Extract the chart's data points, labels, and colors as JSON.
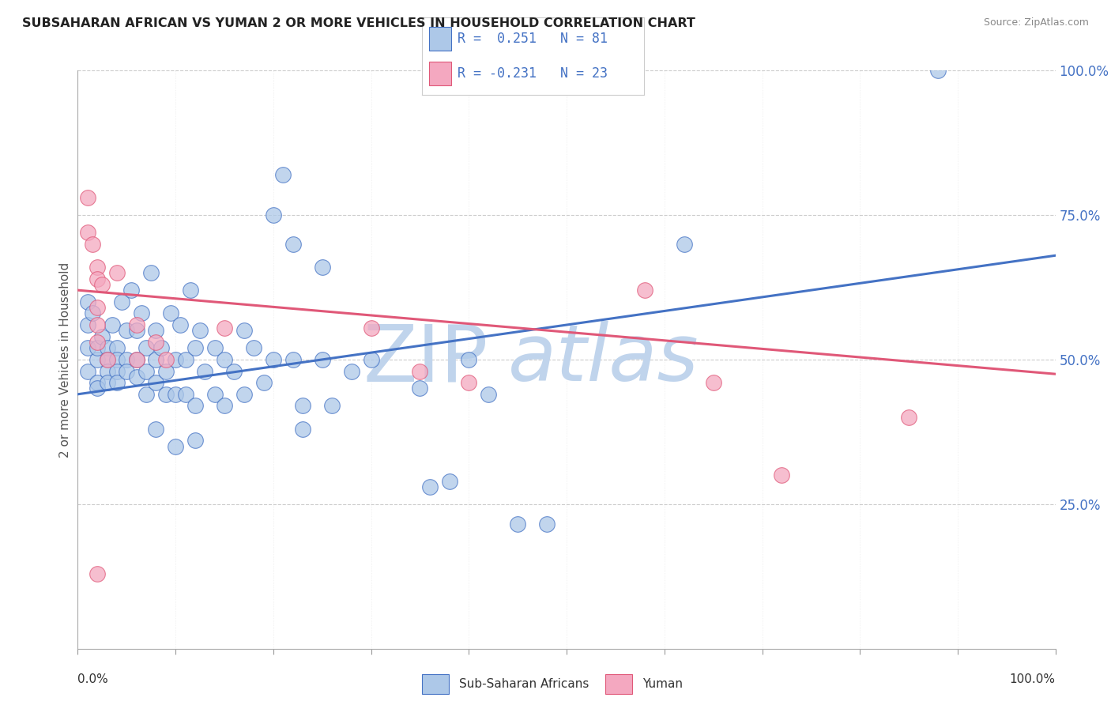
{
  "title": "SUBSAHARAN AFRICAN VS YUMAN 2 OR MORE VEHICLES IN HOUSEHOLD CORRELATION CHART",
  "source": "Source: ZipAtlas.com",
  "ylabel": "2 or more Vehicles in Household",
  "legend_blue_label": "Sub-Saharan Africans",
  "legend_pink_label": "Yuman",
  "blue_color": "#adc8e8",
  "pink_color": "#f4a8c0",
  "blue_line_color": "#4472c4",
  "pink_line_color": "#e05878",
  "background_color": "#ffffff",
  "grid_color": "#cccccc",
  "watermark_color": "#c0d4ec",
  "blue_points": [
    [
      0.01,
      0.48
    ],
    [
      0.01,
      0.52
    ],
    [
      0.01,
      0.56
    ],
    [
      0.01,
      0.6
    ],
    [
      0.015,
      0.58
    ],
    [
      0.02,
      0.5
    ],
    [
      0.02,
      0.52
    ],
    [
      0.02,
      0.46
    ],
    [
      0.02,
      0.45
    ],
    [
      0.025,
      0.54
    ],
    [
      0.03,
      0.52
    ],
    [
      0.03,
      0.5
    ],
    [
      0.03,
      0.48
    ],
    [
      0.03,
      0.46
    ],
    [
      0.035,
      0.56
    ],
    [
      0.04,
      0.52
    ],
    [
      0.04,
      0.5
    ],
    [
      0.04,
      0.48
    ],
    [
      0.04,
      0.46
    ],
    [
      0.045,
      0.6
    ],
    [
      0.05,
      0.55
    ],
    [
      0.05,
      0.5
    ],
    [
      0.05,
      0.48
    ],
    [
      0.055,
      0.62
    ],
    [
      0.06,
      0.55
    ],
    [
      0.06,
      0.5
    ],
    [
      0.06,
      0.47
    ],
    [
      0.065,
      0.58
    ],
    [
      0.07,
      0.52
    ],
    [
      0.07,
      0.48
    ],
    [
      0.07,
      0.44
    ],
    [
      0.075,
      0.65
    ],
    [
      0.08,
      0.55
    ],
    [
      0.08,
      0.5
    ],
    [
      0.08,
      0.46
    ],
    [
      0.08,
      0.38
    ],
    [
      0.085,
      0.52
    ],
    [
      0.09,
      0.48
    ],
    [
      0.09,
      0.44
    ],
    [
      0.095,
      0.58
    ],
    [
      0.1,
      0.5
    ],
    [
      0.1,
      0.44
    ],
    [
      0.1,
      0.35
    ],
    [
      0.105,
      0.56
    ],
    [
      0.11,
      0.5
    ],
    [
      0.11,
      0.44
    ],
    [
      0.115,
      0.62
    ],
    [
      0.12,
      0.52
    ],
    [
      0.12,
      0.42
    ],
    [
      0.12,
      0.36
    ],
    [
      0.125,
      0.55
    ],
    [
      0.13,
      0.48
    ],
    [
      0.14,
      0.52
    ],
    [
      0.14,
      0.44
    ],
    [
      0.15,
      0.5
    ],
    [
      0.15,
      0.42
    ],
    [
      0.16,
      0.48
    ],
    [
      0.17,
      0.55
    ],
    [
      0.17,
      0.44
    ],
    [
      0.18,
      0.52
    ],
    [
      0.19,
      0.46
    ],
    [
      0.2,
      0.75
    ],
    [
      0.2,
      0.5
    ],
    [
      0.21,
      0.82
    ],
    [
      0.22,
      0.7
    ],
    [
      0.22,
      0.5
    ],
    [
      0.23,
      0.42
    ],
    [
      0.23,
      0.38
    ],
    [
      0.25,
      0.66
    ],
    [
      0.25,
      0.5
    ],
    [
      0.26,
      0.42
    ],
    [
      0.28,
      0.48
    ],
    [
      0.3,
      0.5
    ],
    [
      0.35,
      0.45
    ],
    [
      0.36,
      0.28
    ],
    [
      0.38,
      0.29
    ],
    [
      0.4,
      0.5
    ],
    [
      0.42,
      0.44
    ],
    [
      0.45,
      0.215
    ],
    [
      0.48,
      0.215
    ],
    [
      0.62,
      0.7
    ],
    [
      0.88,
      1.0
    ]
  ],
  "pink_points": [
    [
      0.01,
      0.78
    ],
    [
      0.01,
      0.72
    ],
    [
      0.015,
      0.7
    ],
    [
      0.02,
      0.66
    ],
    [
      0.02,
      0.64
    ],
    [
      0.02,
      0.59
    ],
    [
      0.02,
      0.56
    ],
    [
      0.02,
      0.53
    ],
    [
      0.025,
      0.63
    ],
    [
      0.03,
      0.5
    ],
    [
      0.04,
      0.65
    ],
    [
      0.06,
      0.56
    ],
    [
      0.06,
      0.5
    ],
    [
      0.08,
      0.53
    ],
    [
      0.09,
      0.5
    ],
    [
      0.15,
      0.555
    ],
    [
      0.3,
      0.555
    ],
    [
      0.35,
      0.48
    ],
    [
      0.4,
      0.46
    ],
    [
      0.58,
      0.62
    ],
    [
      0.65,
      0.46
    ],
    [
      0.72,
      0.3
    ],
    [
      0.85,
      0.4
    ],
    [
      0.02,
      0.13
    ]
  ],
  "blue_line_x": [
    0.0,
    1.0
  ],
  "blue_line_y": [
    0.44,
    0.68
  ],
  "pink_line_x": [
    0.0,
    1.0
  ],
  "pink_line_y": [
    0.62,
    0.475
  ],
  "ytick_positions": [
    0.0,
    0.25,
    0.5,
    0.75,
    1.0
  ],
  "ytick_labels_right": [
    "",
    "25.0%",
    "50.0%",
    "75.0%",
    "100.0%"
  ],
  "xtick_minor": [
    0.0,
    0.1,
    0.2,
    0.3,
    0.4,
    0.5,
    0.6,
    0.7,
    0.8,
    0.9,
    1.0
  ]
}
